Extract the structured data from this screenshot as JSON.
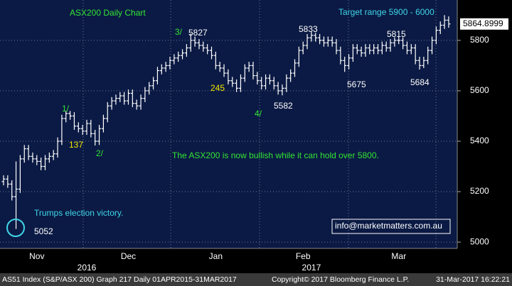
{
  "chart_data": {
    "type": "ohlc",
    "title": "ASX200 Daily Chart",
    "subtitle": "Target range 5900 - 6000",
    "color": "#ffffff",
    "grid": true,
    "ylim": [
      4975,
      5960
    ],
    "yticks": [
      5000,
      5200,
      5400,
      5600,
      5800
    ],
    "last_price": 5864.8999,
    "categories": [
      null,
      null,
      null,
      null,
      null,
      null,
      null,
      null,
      "Nov",
      null,
      null,
      null,
      null,
      null,
      null,
      null,
      null,
      null,
      null,
      null,
      null,
      null,
      null,
      null,
      null,
      null,
      null,
      null,
      null,
      null,
      "Dec",
      null,
      null,
      null,
      null,
      null,
      null,
      null,
      null,
      null,
      null,
      null,
      null,
      null,
      null,
      null,
      null,
      null,
      null,
      null,
      null,
      "Jan",
      null,
      null,
      null,
      null,
      null,
      null,
      null,
      null,
      null,
      null,
      null,
      null,
      null,
      null,
      null,
      null,
      null,
      null,
      null,
      null,
      "Feb",
      null,
      null,
      null,
      null,
      null,
      null,
      null,
      null,
      null,
      null,
      null,
      null,
      null,
      null,
      null,
      null,
      null,
      null,
      null,
      null,
      null,
      null,
      "Mar",
      null,
      null,
      null,
      null,
      null,
      null,
      null,
      null,
      null,
      null,
      null,
      null
    ],
    "years": [
      null,
      null,
      null,
      null,
      null,
      null,
      null,
      null,
      null,
      null,
      null,
      null,
      null,
      null,
      null,
      null,
      null,
      null,
      null,
      null,
      "2016",
      null,
      null,
      null,
      null,
      null,
      null,
      null,
      null,
      null,
      null,
      null,
      null,
      null,
      null,
      null,
      null,
      null,
      null,
      null,
      null,
      null,
      null,
      null,
      null,
      null,
      null,
      null,
      null,
      null,
      null,
      null,
      null,
      null,
      null,
      null,
      null,
      null,
      null,
      null,
      null,
      null,
      null,
      null,
      null,
      null,
      null,
      null,
      null,
      null,
      null,
      null,
      null,
      null,
      "2017",
      null,
      null,
      null,
      null,
      null,
      null,
      null,
      null,
      null,
      null,
      null,
      null,
      null,
      null,
      null,
      null,
      null,
      null,
      null,
      null,
      null,
      null,
      null,
      null,
      null,
      null,
      null,
      null,
      null,
      null,
      null,
      null,
      null
    ],
    "open": [
      5240,
      5250,
      5230,
      5180,
      5210,
      5330,
      5370,
      5340,
      5330,
      5320,
      5300,
      5330,
      5340,
      5350,
      5400,
      5490,
      5510,
      5500,
      5460,
      5450,
      5440,
      5470,
      5430,
      5400,
      5450,
      5490,
      5540,
      5560,
      5570,
      5580,
      5560,
      5590,
      5550,
      5540,
      5570,
      5600,
      5620,
      5640,
      5680,
      5690,
      5700,
      5720,
      5730,
      5740,
      5750,
      5770,
      5800,
      5790,
      5780,
      5770,
      5760,
      5740,
      5700,
      5690,
      5670,
      5640,
      5630,
      5610,
      5650,
      5690,
      5700,
      5660,
      5640,
      5620,
      5650,
      5640,
      5620,
      5600,
      5610,
      5650,
      5670,
      5710,
      5760,
      5780,
      5810,
      5820,
      5810,
      5800,
      5790,
      5800,
      5790,
      5760,
      5720,
      5700,
      5730,
      5770,
      5760,
      5750,
      5770,
      5760,
      5770,
      5760,
      5780,
      5770,
      5790,
      5800,
      5800,
      5780,
      5760,
      5770,
      5720,
      5700,
      5720,
      5760,
      5800,
      5840,
      5860,
      5880
    ],
    "high": [
      5265,
      5265,
      5245,
      5320,
      5345,
      5385,
      5385,
      5355,
      5345,
      5335,
      5345,
      5355,
      5365,
      5415,
      5505,
      5520,
      5520,
      5515,
      5475,
      5465,
      5485,
      5485,
      5445,
      5465,
      5505,
      5555,
      5575,
      5585,
      5595,
      5595,
      5605,
      5605,
      5565,
      5585,
      5615,
      5635,
      5655,
      5695,
      5705,
      5715,
      5735,
      5745,
      5755,
      5765,
      5785,
      5827,
      5815,
      5805,
      5795,
      5785,
      5775,
      5755,
      5715,
      5705,
      5685,
      5655,
      5645,
      5665,
      5705,
      5715,
      5715,
      5675,
      5655,
      5665,
      5665,
      5655,
      5635,
      5625,
      5665,
      5685,
      5725,
      5775,
      5795,
      5825,
      5833,
      5830,
      5825,
      5815,
      5815,
      5815,
      5805,
      5775,
      5735,
      5745,
      5785,
      5785,
      5775,
      5785,
      5785,
      5785,
      5785,
      5795,
      5795,
      5805,
      5812,
      5815,
      5812,
      5795,
      5785,
      5785,
      5735,
      5735,
      5775,
      5815,
      5855,
      5875,
      5900,
      5895
    ],
    "low": [
      5225,
      5215,
      5165,
      5052,
      5195,
      5315,
      5325,
      5315,
      5305,
      5285,
      5285,
      5315,
      5325,
      5335,
      5385,
      5475,
      5485,
      5445,
      5435,
      5425,
      5425,
      5415,
      5383,
      5385,
      5435,
      5475,
      5525,
      5545,
      5555,
      5545,
      5545,
      5535,
      5525,
      5525,
      5555,
      5585,
      5605,
      5625,
      5665,
      5675,
      5685,
      5705,
      5715,
      5725,
      5735,
      5755,
      5775,
      5765,
      5755,
      5745,
      5725,
      5685,
      5675,
      5655,
      5625,
      5615,
      5595,
      5595,
      5635,
      5675,
      5645,
      5625,
      5605,
      5605,
      5625,
      5605,
      5585,
      5582,
      5595,
      5635,
      5655,
      5695,
      5745,
      5765,
      5795,
      5795,
      5785,
      5775,
      5775,
      5775,
      5745,
      5705,
      5675,
      5685,
      5715,
      5745,
      5735,
      5735,
      5745,
      5745,
      5745,
      5745,
      5755,
      5755,
      5775,
      5785,
      5765,
      5745,
      5745,
      5705,
      5684,
      5690,
      5705,
      5745,
      5785,
      5825,
      5845,
      5850
    ],
    "close": [
      5250,
      5230,
      5180,
      5210,
      5330,
      5370,
      5340,
      5330,
      5320,
      5300,
      5330,
      5340,
      5350,
      5400,
      5490,
      5510,
      5500,
      5460,
      5450,
      5440,
      5470,
      5430,
      5400,
      5450,
      5490,
      5540,
      5560,
      5570,
      5580,
      5560,
      5590,
      5550,
      5540,
      5570,
      5600,
      5620,
      5640,
      5680,
      5690,
      5700,
      5720,
      5730,
      5740,
      5750,
      5770,
      5800,
      5790,
      5780,
      5770,
      5760,
      5740,
      5700,
      5690,
      5670,
      5640,
      5630,
      5610,
      5650,
      5690,
      5700,
      5660,
      5640,
      5620,
      5650,
      5640,
      5620,
      5600,
      5610,
      5650,
      5670,
      5710,
      5760,
      5780,
      5810,
      5820,
      5810,
      5800,
      5790,
      5800,
      5790,
      5760,
      5720,
      5700,
      5730,
      5770,
      5760,
      5750,
      5770,
      5760,
      5770,
      5760,
      5780,
      5770,
      5790,
      5800,
      5800,
      5780,
      5760,
      5770,
      5720,
      5700,
      5720,
      5760,
      5800,
      5840,
      5860,
      5880,
      5865
    ],
    "annotations": [
      "3/",
      "5827",
      "5833",
      "5815",
      "5675",
      "5684",
      "245",
      "4/",
      "5582",
      "1/",
      "137",
      "2/",
      "The ASX200 is now bullish while it can hold over 5800.",
      "Trumps election victory.",
      "5052",
      "info@marketmatters.com.au"
    ],
    "footer": [
      "AS51 Index (S&P/ASX 200) Graph 217  Daily 01APR2015-31MAR2017",
      "Copyright© 2017 Bloomberg Finance L.P.",
      "31-Mar-2017 16:22:21"
    ]
  }
}
